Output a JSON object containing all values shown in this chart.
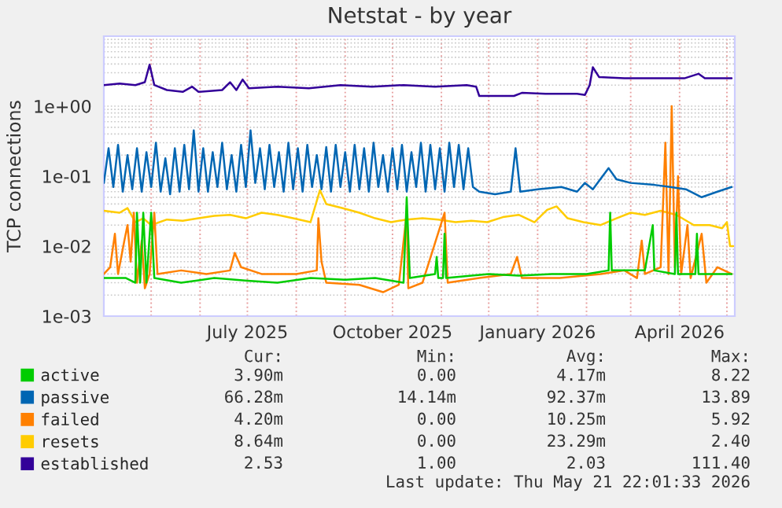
{
  "chart_data": {
    "type": "line",
    "title": "Netstat - by year",
    "ylabel": "TCP connections",
    "log": "y",
    "grid": true,
    "legend": "bottom left",
    "line_style": "solid",
    "marker": "none",
    "xlim": [
      "2025-04-01",
      "2026-05-06"
    ],
    "xticks": [
      {
        "value": "2025-07-01",
        "label": "July 2025"
      },
      {
        "value": "2025-10-01",
        "label": "October 2025"
      },
      {
        "value": "2026-01-01",
        "label": "January 2026"
      },
      {
        "value": "2026-04-01",
        "label": "April 2026"
      }
    ],
    "ylim": [
      0.001,
      10
    ],
    "yticks": [
      {
        "value": 0.001,
        "label": "1e-03"
      },
      {
        "value": 0.01,
        "label": "1e-02"
      },
      {
        "value": 0.1,
        "label": "1e-01"
      },
      {
        "value": 1,
        "label": "1e+00"
      }
    ],
    "series": [
      {
        "name": "active",
        "color": "#00cc00",
        "x": [
          "2025-04-01",
          "2025-04-15",
          "2025-04-21",
          "2025-04-22",
          "2025-04-24",
          "2025-04-26",
          "2025-04-28",
          "2025-05-01",
          "2025-05-03",
          "2025-05-20",
          "2025-06-10",
          "2025-07-01",
          "2025-07-20",
          "2025-08-10",
          "2025-09-01",
          "2025-09-20",
          "2025-10-08",
          "2025-10-10",
          "2025-10-12",
          "2025-10-28",
          "2025-10-29",
          "2025-10-30",
          "2025-11-02",
          "2025-11-03",
          "2025-11-04",
          "2025-12-01",
          "2025-12-20",
          "2026-01-10",
          "2026-02-01",
          "2026-02-15",
          "2026-02-16",
          "2026-02-17",
          "2026-03-10",
          "2026-03-15",
          "2026-03-16",
          "2026-03-29",
          "2026-03-30",
          "2026-03-31",
          "2026-04-11",
          "2026-04-12",
          "2026-04-13",
          "2026-05-04"
        ],
        "values": [
          0.0035,
          0.0035,
          0.003,
          0.03,
          0.003,
          0.03,
          0.003,
          0.03,
          0.0035,
          0.003,
          0.0035,
          0.0032,
          0.003,
          0.0035,
          0.0033,
          0.0035,
          0.003,
          0.05,
          0.0035,
          0.004,
          0.007,
          0.0035,
          0.0035,
          0.015,
          0.0035,
          0.004,
          0.0038,
          0.004,
          0.004,
          0.0045,
          0.03,
          0.0045,
          0.0045,
          0.02,
          0.0045,
          0.004,
          0.03,
          0.004,
          0.004,
          0.015,
          0.004,
          0.004
        ]
      },
      {
        "name": "passive",
        "color": "#0066b3",
        "x": [
          "2025-04-01",
          "2025-04-04",
          "2025-04-07",
          "2025-04-10",
          "2025-04-13",
          "2025-04-16",
          "2025-04-19",
          "2025-04-22",
          "2025-04-25",
          "2025-04-28",
          "2025-05-01",
          "2025-05-04",
          "2025-05-07",
          "2025-05-10",
          "2025-05-13",
          "2025-05-16",
          "2025-05-19",
          "2025-05-22",
          "2025-05-25",
          "2025-05-28",
          "2025-05-31",
          "2025-06-03",
          "2025-06-06",
          "2025-06-09",
          "2025-06-12",
          "2025-06-15",
          "2025-06-18",
          "2025-06-21",
          "2025-06-24",
          "2025-06-27",
          "2025-06-30",
          "2025-07-03",
          "2025-07-06",
          "2025-07-09",
          "2025-07-12",
          "2025-07-15",
          "2025-07-18",
          "2025-07-21",
          "2025-07-24",
          "2025-07-27",
          "2025-07-30",
          "2025-08-02",
          "2025-08-05",
          "2025-08-08",
          "2025-08-11",
          "2025-08-14",
          "2025-08-17",
          "2025-08-20",
          "2025-08-23",
          "2025-08-26",
          "2025-08-29",
          "2025-09-01",
          "2025-09-04",
          "2025-09-07",
          "2025-09-10",
          "2025-09-13",
          "2025-09-16",
          "2025-09-19",
          "2025-09-22",
          "2025-09-25",
          "2025-09-28",
          "2025-10-01",
          "2025-10-04",
          "2025-10-07",
          "2025-10-10",
          "2025-10-13",
          "2025-10-16",
          "2025-10-19",
          "2025-10-22",
          "2025-10-25",
          "2025-10-28",
          "2025-10-31",
          "2025-11-03",
          "2025-11-06",
          "2025-11-09",
          "2025-11-12",
          "2025-11-15",
          "2025-11-18",
          "2025-11-21",
          "2025-11-25",
          "2025-12-05",
          "2025-12-15",
          "2025-12-18",
          "2025-12-21",
          "2026-01-01",
          "2026-01-16",
          "2026-01-26",
          "2026-01-31",
          "2026-02-05",
          "2026-02-15",
          "2026-02-20",
          "2026-03-01",
          "2026-03-16",
          "2026-03-26",
          "2026-04-05",
          "2026-04-15",
          "2026-04-25",
          "2026-05-04"
        ],
        "values": [
          0.08,
          0.25,
          0.07,
          0.28,
          0.06,
          0.2,
          0.065,
          0.25,
          0.06,
          0.22,
          0.07,
          0.3,
          0.06,
          0.18,
          0.055,
          0.25,
          0.06,
          0.28,
          0.065,
          0.45,
          0.06,
          0.25,
          0.06,
          0.22,
          0.07,
          0.3,
          0.065,
          0.2,
          0.06,
          0.28,
          0.07,
          0.45,
          0.08,
          0.25,
          0.065,
          0.28,
          0.07,
          0.22,
          0.06,
          0.3,
          0.065,
          0.25,
          0.06,
          0.28,
          0.07,
          0.2,
          0.065,
          0.26,
          0.06,
          0.28,
          0.07,
          0.22,
          0.06,
          0.28,
          0.065,
          0.25,
          0.06,
          0.3,
          0.07,
          0.2,
          0.06,
          0.25,
          0.065,
          0.28,
          0.06,
          0.22,
          0.07,
          0.3,
          0.06,
          0.28,
          0.065,
          0.25,
          0.06,
          0.3,
          0.07,
          0.28,
          0.065,
          0.25,
          0.07,
          0.06,
          0.055,
          0.06,
          0.25,
          0.06,
          0.065,
          0.07,
          0.06,
          0.08,
          0.065,
          0.13,
          0.09,
          0.08,
          0.075,
          0.07,
          0.065,
          0.05,
          0.06,
          0.07
        ]
      },
      {
        "name": "failed",
        "color": "#ff8000",
        "x": [
          "2025-04-01",
          "2025-04-05",
          "2025-04-08",
          "2025-04-10",
          "2025-04-14",
          "2025-04-16",
          "2025-04-18",
          "2025-04-20",
          "2025-04-22",
          "2025-04-25",
          "2025-04-27",
          "2025-04-30",
          "2025-05-03",
          "2025-05-05",
          "2025-05-20",
          "2025-06-05",
          "2025-06-20",
          "2025-06-23",
          "2025-06-27",
          "2025-07-10",
          "2025-08-01",
          "2025-08-14",
          "2025-08-15",
          "2025-08-17",
          "2025-08-20",
          "2025-09-10",
          "2025-09-25",
          "2025-10-05",
          "2025-10-10",
          "2025-10-11",
          "2025-10-20",
          "2025-11-03",
          "2025-11-05",
          "2025-11-25",
          "2025-12-15",
          "2025-12-19",
          "2025-12-22",
          "2026-01-15",
          "2026-02-10",
          "2026-02-25",
          "2026-03-05",
          "2026-03-08",
          "2026-03-10",
          "2026-03-20",
          "2026-03-23",
          "2026-03-25",
          "2026-03-27",
          "2026-03-29",
          "2026-03-31",
          "2026-04-02",
          "2026-04-06",
          "2026-04-08",
          "2026-04-15",
          "2026-04-18",
          "2026-04-25",
          "2026-05-04"
        ],
        "values": [
          0.004,
          0.005,
          0.015,
          0.004,
          0.012,
          0.02,
          0.006,
          0.03,
          0.003,
          0.012,
          0.0025,
          0.004,
          0.03,
          0.004,
          0.0045,
          0.004,
          0.0045,
          0.008,
          0.005,
          0.004,
          0.004,
          0.0045,
          0.025,
          0.006,
          0.003,
          0.0028,
          0.0022,
          0.0028,
          0.03,
          0.0025,
          0.003,
          0.03,
          0.003,
          0.0035,
          0.004,
          0.007,
          0.0035,
          0.0035,
          0.004,
          0.0045,
          0.0035,
          0.012,
          0.004,
          0.005,
          0.3,
          0.004,
          1.0,
          0.005,
          0.1,
          0.004,
          0.02,
          0.0035,
          0.015,
          0.003,
          0.005,
          0.004
        ]
      },
      {
        "name": "resets",
        "color": "#ffcc00",
        "x": [
          "2025-04-01",
          "2025-04-11",
          "2025-04-16",
          "2025-04-21",
          "2025-04-26",
          "2025-05-01",
          "2025-05-11",
          "2025-05-21",
          "2025-05-31",
          "2025-06-10",
          "2025-06-20",
          "2025-06-30",
          "2025-07-10",
          "2025-07-20",
          "2025-07-30",
          "2025-08-10",
          "2025-08-16",
          "2025-08-20",
          "2025-08-30",
          "2025-09-10",
          "2025-09-20",
          "2025-09-30",
          "2025-10-10",
          "2025-10-20",
          "2025-10-30",
          "2025-11-10",
          "2025-11-20",
          "2025-11-30",
          "2025-12-10",
          "2025-12-20",
          "2025-12-30",
          "2026-01-07",
          "2026-01-13",
          "2026-01-20",
          "2026-01-30",
          "2026-02-10",
          "2026-02-20",
          "2026-03-01",
          "2026-03-10",
          "2026-03-20",
          "2026-03-30",
          "2026-04-10",
          "2026-04-20",
          "2026-04-28",
          "2026-05-01",
          "2026-05-03",
          "2026-05-05"
        ],
        "values": [
          0.032,
          0.03,
          0.035,
          0.022,
          0.025,
          0.02,
          0.024,
          0.023,
          0.025,
          0.027,
          0.028,
          0.025,
          0.03,
          0.028,
          0.025,
          0.022,
          0.063,
          0.04,
          0.035,
          0.03,
          0.025,
          0.022,
          0.024,
          0.025,
          0.024,
          0.022,
          0.023,
          0.022,
          0.026,
          0.028,
          0.022,
          0.033,
          0.037,
          0.025,
          0.022,
          0.02,
          0.025,
          0.03,
          0.028,
          0.032,
          0.028,
          0.02,
          0.02,
          0.018,
          0.022,
          0.01,
          0.01
        ]
      },
      {
        "name": "established",
        "color": "#330099",
        "x": [
          "2025-04-01",
          "2025-04-11",
          "2025-04-21",
          "2025-04-27",
          "2025-04-30",
          "2025-05-03",
          "2025-05-11",
          "2025-05-21",
          "2025-05-27",
          "2025-05-31",
          "2025-06-15",
          "2025-06-20",
          "2025-06-24",
          "2025-06-28",
          "2025-07-02",
          "2025-07-20",
          "2025-08-09",
          "2025-08-29",
          "2025-09-18",
          "2025-10-08",
          "2025-10-28",
          "2025-11-17",
          "2025-11-23",
          "2025-11-25",
          "2025-12-17",
          "2025-12-22",
          "2026-01-06",
          "2026-01-26",
          "2026-01-31",
          "2026-02-03",
          "2026-02-05",
          "2026-02-09",
          "2026-02-25",
          "2026-03-17",
          "2026-04-04",
          "2026-04-13",
          "2026-04-17",
          "2026-05-04"
        ],
        "values": [
          2.0,
          2.1,
          2.0,
          2.2,
          3.9,
          2.0,
          1.7,
          1.6,
          1.9,
          1.6,
          1.7,
          2.2,
          1.7,
          2.4,
          1.8,
          1.9,
          1.8,
          2.0,
          1.9,
          2.0,
          1.9,
          2.0,
          1.9,
          1.4,
          1.4,
          1.55,
          1.5,
          1.5,
          1.45,
          2.0,
          3.6,
          2.6,
          2.5,
          2.5,
          2.5,
          2.9,
          2.5,
          2.5
        ]
      }
    ],
    "annotations": [
      "Cur:",
      "Min:",
      "Avg:",
      "Max:",
      "3.90m",
      "0.00",
      "4.17m",
      "8.22",
      "66.28m",
      "14.14m",
      "92.37m",
      "13.89",
      "4.20m",
      "0.00",
      "10.25m",
      "5.92",
      "8.64m",
      "0.00",
      "23.29m",
      "2.40",
      "2.53",
      "1.00",
      "2.03",
      "111.40",
      "Last update: Thu May 21 22:01:33 2026"
    ]
  }
}
